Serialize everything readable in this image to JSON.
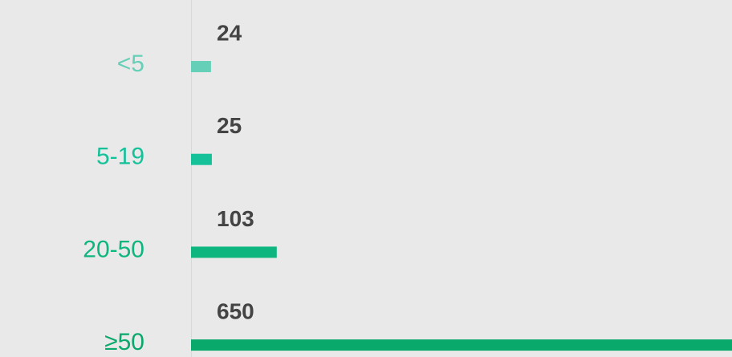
{
  "chart_data": {
    "type": "bar",
    "orientation": "horizontal",
    "categories": [
      "<5",
      "5-19",
      "20-50",
      "≥50"
    ],
    "values": [
      24,
      25,
      103,
      650
    ],
    "colors": [
      "#66cfb8",
      "#14c199",
      "#0db57f",
      "#09a96b"
    ]
  }
}
